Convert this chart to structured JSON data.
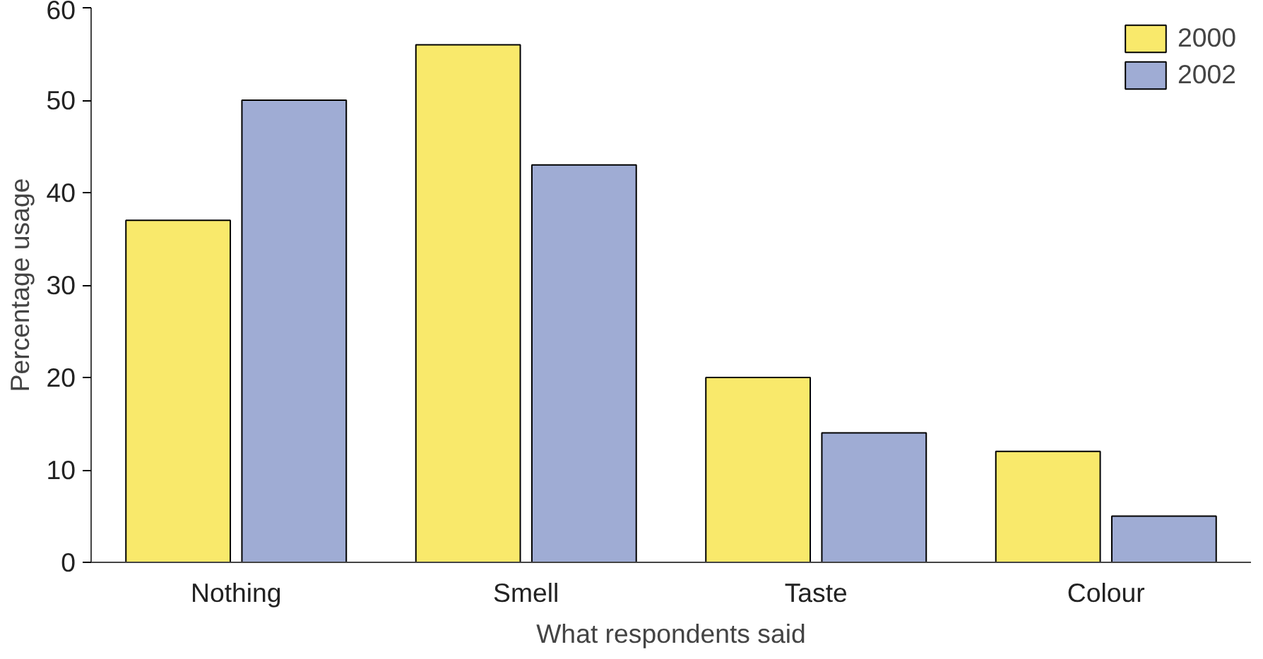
{
  "chart_data": {
    "type": "bar",
    "xlabel": "What respondents said",
    "ylabel": "Percentage usage",
    "categories": [
      "Nothing",
      "Smell",
      "Taste",
      "Colour"
    ],
    "series": [
      {
        "name": "2000",
        "color": "#f9e96b",
        "values": [
          37,
          56,
          20,
          12
        ]
      },
      {
        "name": "2002",
        "color": "#9facd4",
        "values": [
          50,
          43,
          14,
          5
        ]
      }
    ],
    "ylim": [
      0,
      60
    ],
    "yticks": [
      0,
      10,
      20,
      30,
      40,
      50,
      60
    ],
    "grid": false,
    "legend": "top right"
  }
}
